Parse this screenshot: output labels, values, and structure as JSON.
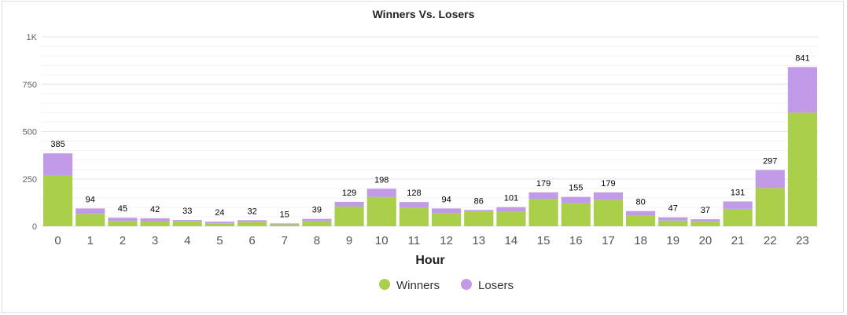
{
  "chart_data": {
    "type": "bar",
    "stacked": true,
    "title": "Winners Vs. Losers",
    "xlabel": "Hour",
    "ylabel": "",
    "ylim": [
      0,
      1000
    ],
    "y_ticks": [
      0,
      250,
      500,
      750,
      1000
    ],
    "y_tick_labels": [
      "0",
      "250",
      "500",
      "750",
      "1K"
    ],
    "categories": [
      "0",
      "1",
      "2",
      "3",
      "4",
      "5",
      "6",
      "7",
      "8",
      "9",
      "10",
      "11",
      "12",
      "13",
      "14",
      "15",
      "16",
      "17",
      "18",
      "19",
      "20",
      "21",
      "22",
      "23"
    ],
    "series": [
      {
        "name": "Winners",
        "color": "#aacf4a",
        "values": [
          270,
          65,
          28,
          25,
          28,
          16,
          22,
          10,
          26,
          104,
          155,
          98,
          68,
          78,
          76,
          145,
          122,
          140,
          55,
          30,
          24,
          92,
          202,
          600
        ]
      },
      {
        "name": "Losers",
        "color": "#c29be8",
        "values": [
          115,
          29,
          17,
          17,
          5,
          8,
          10,
          5,
          13,
          25,
          43,
          30,
          26,
          8,
          25,
          34,
          33,
          39,
          25,
          17,
          13,
          39,
          95,
          241
        ]
      }
    ],
    "totals": [
      385,
      94,
      45,
      42,
      33,
      24,
      32,
      15,
      39,
      129,
      198,
      128,
      94,
      86,
      101,
      179,
      155,
      179,
      80,
      47,
      37,
      131,
      297,
      841
    ],
    "grid": true,
    "legend_position": "bottom-center"
  }
}
